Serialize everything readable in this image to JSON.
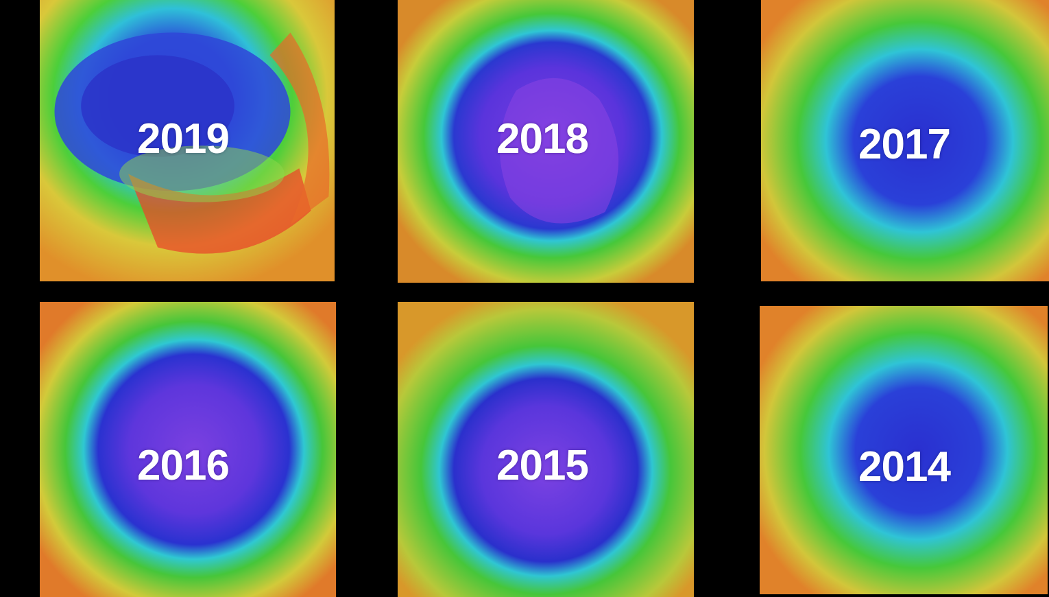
{
  "panels": [
    {
      "label": "2019"
    },
    {
      "label": "2018"
    },
    {
      "label": "2017"
    },
    {
      "label": "2016"
    },
    {
      "label": "2015"
    },
    {
      "label": "2014"
    }
  ],
  "colors": {
    "background": "#000000",
    "ozone_low": "#5a2fd8",
    "ozone_deep_blue": "#2a2fd0",
    "ozone_cyan": "#2fc9d6",
    "ozone_green": "#3fc23a",
    "ozone_yellow": "#d7d33a",
    "ozone_orange": "#e8892a",
    "ozone_high": "#d8231c",
    "label_text": "#ffffff"
  }
}
